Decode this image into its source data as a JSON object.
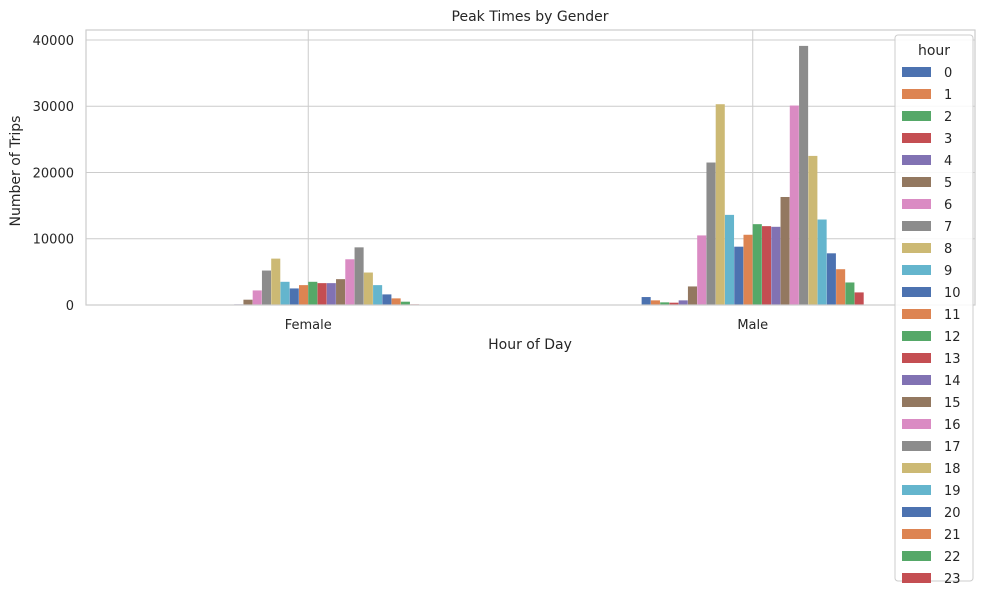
{
  "chart_data": {
    "type": "bar",
    "title": "Peak Times by Gender",
    "xlabel": "Hour of Day",
    "ylabel": "Number of Trips",
    "categories": [
      "Female",
      "Male"
    ],
    "ylim": [
      0,
      41500
    ],
    "yticks": [
      0,
      10000,
      20000,
      30000,
      40000
    ],
    "grid": true,
    "legend": {
      "title": "hour",
      "placement": "right"
    },
    "colors": [
      "#4c72b0",
      "#dd8452",
      "#55a868",
      "#c44e52",
      "#8172b3",
      "#937860",
      "#da8bc3",
      "#8c8c8c",
      "#ccb974",
      "#64b5cd"
    ],
    "series": [
      {
        "name": "0",
        "values": [
          60,
          1200
        ]
      },
      {
        "name": "1",
        "values": [
          40,
          700
        ]
      },
      {
        "name": "2",
        "values": [
          30,
          400
        ]
      },
      {
        "name": "3",
        "values": [
          30,
          350
        ]
      },
      {
        "name": "4",
        "values": [
          100,
          700
        ]
      },
      {
        "name": "5",
        "values": [
          800,
          2800
        ]
      },
      {
        "name": "6",
        "values": [
          2200,
          10500
        ]
      },
      {
        "name": "7",
        "values": [
          5200,
          21500
        ]
      },
      {
        "name": "8",
        "values": [
          7000,
          30300
        ]
      },
      {
        "name": "9",
        "values": [
          3500,
          13600
        ]
      },
      {
        "name": "10",
        "values": [
          2500,
          8800
        ]
      },
      {
        "name": "11",
        "values": [
          3000,
          10600
        ]
      },
      {
        "name": "12",
        "values": [
          3500,
          12200
        ]
      },
      {
        "name": "13",
        "values": [
          3300,
          11900
        ]
      },
      {
        "name": "14",
        "values": [
          3300,
          11800
        ]
      },
      {
        "name": "15",
        "values": [
          3900,
          16300
        ]
      },
      {
        "name": "16",
        "values": [
          6900,
          30100
        ]
      },
      {
        "name": "17",
        "values": [
          8700,
          39100
        ]
      },
      {
        "name": "18",
        "values": [
          4900,
          22500
        ]
      },
      {
        "name": "19",
        "values": [
          3000,
          12900
        ]
      },
      {
        "name": "20",
        "values": [
          1600,
          7800
        ]
      },
      {
        "name": "21",
        "values": [
          1000,
          5400
        ]
      },
      {
        "name": "22",
        "values": [
          500,
          3400
        ]
      },
      {
        "name": "23",
        "values": [
          100,
          1900
        ]
      }
    ]
  }
}
